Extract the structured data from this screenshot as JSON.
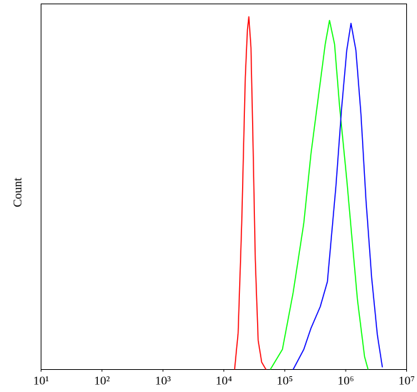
{
  "chart_data": {
    "type": "line",
    "ylabel": "Count",
    "xscale": "log",
    "xlim": [
      10,
      10000000
    ],
    "ylim": [
      0,
      100
    ],
    "grid": false,
    "xticks": [
      {
        "value": 10,
        "label": "10¹"
      },
      {
        "value": 100,
        "label": "10²"
      },
      {
        "value": 1000,
        "label": "10³"
      },
      {
        "value": 10000,
        "label": "10⁴"
      },
      {
        "value": 100000,
        "label": "10⁵"
      },
      {
        "value": 1000000,
        "label": "10⁶"
      },
      {
        "value": 10000000,
        "label": "10⁷"
      }
    ],
    "series": [
      {
        "color": "#ff0000",
        "x": [
          15000,
          17150,
          19650,
          22490,
          24380,
          25720,
          27870,
          30270,
          32810,
          36560,
          41800,
          49200
        ],
        "values": [
          0,
          10,
          40,
          80,
          93,
          96.5,
          88,
          60,
          30,
          8,
          2,
          0
        ]
      },
      {
        "color": "#00ff00",
        "x": [
          57800,
          91400,
          137000,
          205000,
          269000,
          352000,
          461000,
          542000,
          656000,
          793000,
          1040000,
          1250000,
          1560000,
          2040000,
          2330000
        ],
        "values": [
          0,
          5.5,
          21,
          40,
          59,
          74,
          89,
          95.5,
          89,
          72,
          52,
          37,
          19,
          3.5,
          0
        ]
      },
      {
        "color": "#0000ff",
        "x": [
          137000,
          205000,
          269000,
          382000,
          500000,
          557000,
          692000,
          859000,
          1040000,
          1220000,
          1470000,
          1780000,
          2150000,
          2670000,
          3310000,
          4000000
        ],
        "values": [
          0,
          5.5,
          11.3,
          17.2,
          24,
          32.7,
          50.3,
          71.7,
          87.3,
          94.7,
          87.3,
          69.8,
          46.4,
          25,
          9.4,
          0.6
        ]
      }
    ]
  }
}
